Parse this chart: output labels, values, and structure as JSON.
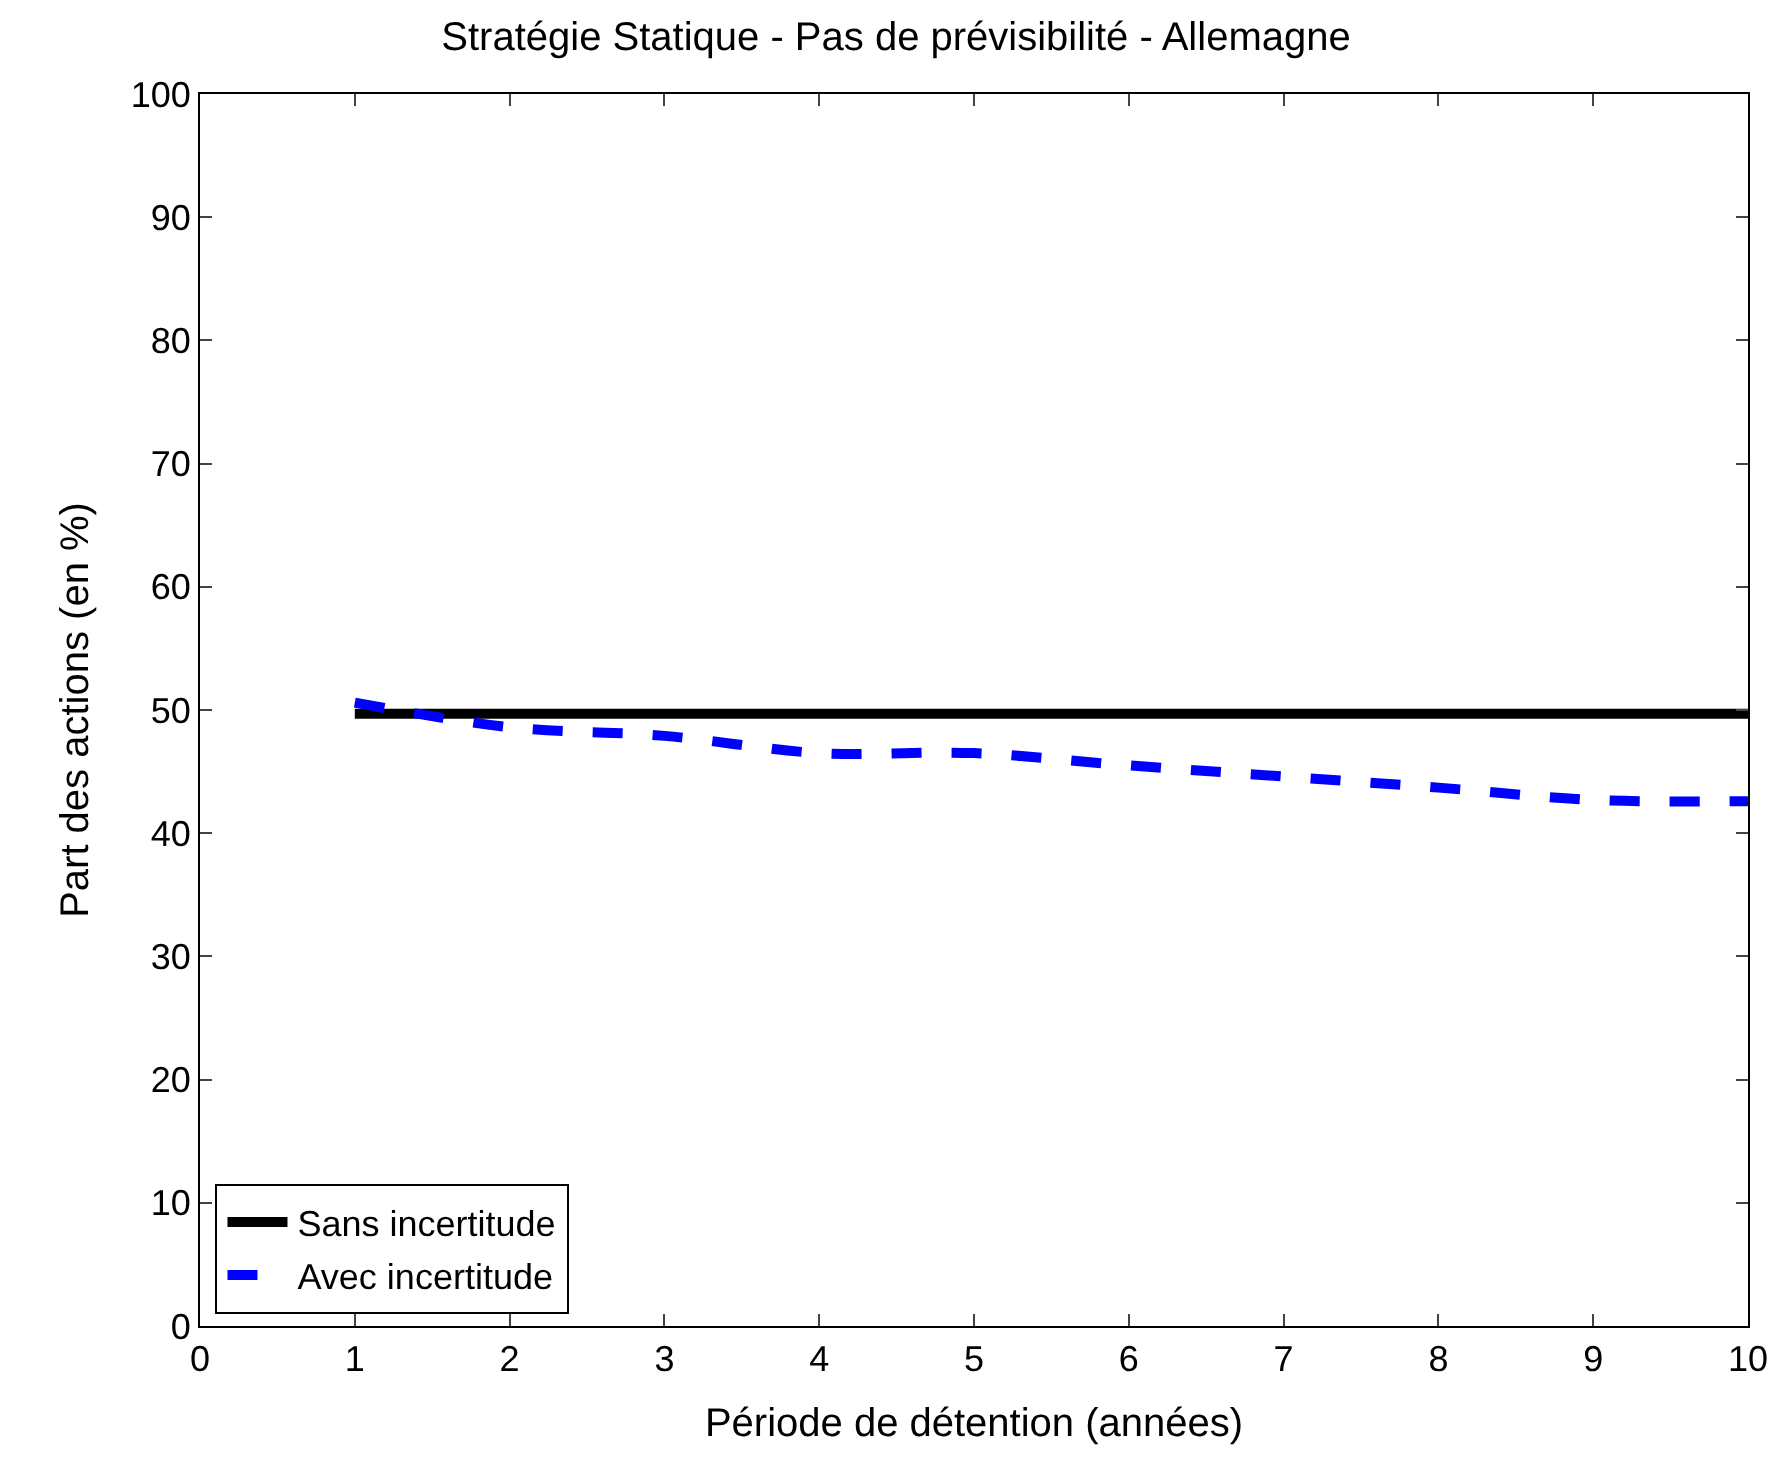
{
  "chart_data": {
    "type": "line",
    "title": "Stratégie Statique - Pas de prévisibilité - Allemagne",
    "xlabel": "Période de détention (années)",
    "ylabel": "Part des actions (en %)",
    "x": [
      1,
      2,
      3,
      4,
      5,
      6,
      7,
      8,
      9,
      10
    ],
    "series": [
      {
        "name": "Sans incertitude",
        "color": "#000000",
        "line_style": "solid",
        "values": [
          49.7,
          49.7,
          49.7,
          49.7,
          49.7,
          49.7,
          49.7,
          49.7,
          49.7,
          49.7
        ]
      },
      {
        "name": "Avec incertitude",
        "color": "#0000ff",
        "line_style": "dashed",
        "values": [
          50.6,
          48.6,
          47.9,
          46.5,
          46.5,
          45.5,
          44.6,
          43.7,
          42.7,
          42.6
        ]
      }
    ],
    "xlim": [
      0,
      10
    ],
    "xticks": [
      0,
      1,
      2,
      3,
      4,
      5,
      6,
      7,
      8,
      9,
      10
    ],
    "ylim": [
      0,
      100
    ],
    "yticks": [
      0,
      10,
      20,
      30,
      40,
      50,
      60,
      70,
      80,
      90,
      100
    ],
    "grid": false,
    "legend": "bottom left",
    "marker": "none"
  }
}
